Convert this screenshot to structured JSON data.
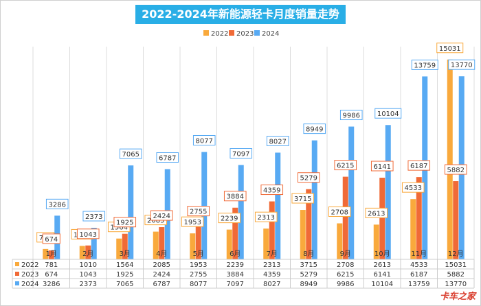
{
  "chart_data": {
    "type": "bar",
    "title": "2022-2024年新能源轻卡月度销量走势",
    "categories": [
      "1月",
      "2月",
      "3月",
      "4月",
      "5月",
      "6月",
      "7月",
      "8月",
      "9月",
      "10月",
      "11月",
      "12月"
    ],
    "series": [
      {
        "name": "2022",
        "color": "#f9a93c",
        "values": [
          781,
          1010,
          1564,
          2085,
          1953,
          2239,
          2313,
          3715,
          2708,
          2613,
          4533,
          15031
        ]
      },
      {
        "name": "2023",
        "color": "#f06a37",
        "values": [
          674,
          1043,
          1925,
          2424,
          2755,
          3884,
          4359,
          5279,
          6215,
          6141,
          6187,
          5882
        ]
      },
      {
        "name": "2024",
        "color": "#58aaf3",
        "values": [
          3286,
          2373,
          7065,
          6787,
          8077,
          7097,
          8027,
          8949,
          9986,
          10104,
          13759,
          13770
        ]
      }
    ],
    "ylim": [
      0,
      16000
    ],
    "legend_position": "top-center",
    "data_table": true
  },
  "watermark": "卡车之家"
}
